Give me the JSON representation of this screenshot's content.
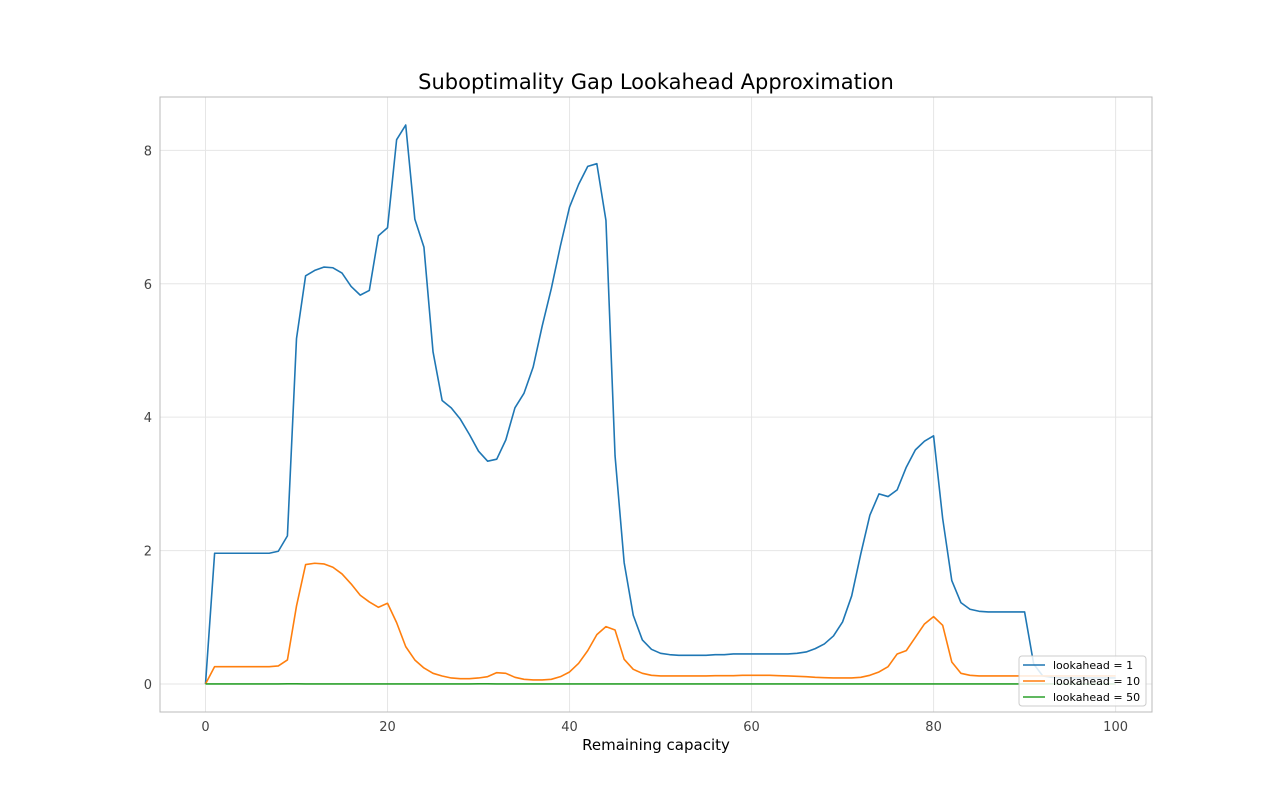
{
  "chart_data": {
    "type": "line",
    "title": "Suboptimality Gap Lookahead Approximation",
    "xlabel": "Remaining capacity",
    "ylabel": "",
    "xlim": [
      -5,
      104
    ],
    "ylim": [
      -0.42,
      8.8
    ],
    "xticks": [
      0,
      20,
      40,
      60,
      80,
      100
    ],
    "yticks": [
      0,
      2,
      4,
      6,
      8
    ],
    "grid": true,
    "legend_position": "lower-right",
    "x": [
      0,
      1,
      2,
      3,
      4,
      5,
      6,
      7,
      8,
      9,
      10,
      11,
      12,
      13,
      14,
      15,
      16,
      17,
      18,
      19,
      20,
      21,
      22,
      23,
      24,
      25,
      26,
      27,
      28,
      29,
      30,
      31,
      32,
      33,
      34,
      35,
      36,
      37,
      38,
      39,
      40,
      41,
      42,
      43,
      44,
      45,
      46,
      47,
      48,
      49,
      50,
      51,
      52,
      53,
      54,
      55,
      56,
      57,
      58,
      59,
      60,
      61,
      62,
      63,
      64,
      65,
      66,
      67,
      68,
      69,
      70,
      71,
      72,
      73,
      74,
      75,
      76,
      77,
      78,
      79,
      80,
      81,
      82,
      83,
      84,
      85,
      86,
      87,
      88,
      89,
      90,
      91,
      92,
      93,
      94,
      95,
      96,
      97,
      98,
      99,
      100
    ],
    "series": [
      {
        "name": "lookahead = 1",
        "color": "#1f77b4",
        "values": [
          0,
          1.96,
          1.96,
          1.96,
          1.96,
          1.96,
          1.96,
          1.96,
          1.99,
          2.22,
          5.18,
          6.12,
          6.2,
          6.25,
          6.24,
          6.16,
          5.96,
          5.83,
          5.9,
          6.72,
          6.84,
          8.16,
          8.38,
          6.97,
          6.55,
          4.98,
          4.25,
          4.14,
          3.97,
          3.74,
          3.49,
          3.34,
          3.37,
          3.66,
          4.14,
          4.36,
          4.75,
          5.37,
          5.93,
          6.57,
          7.15,
          7.49,
          7.76,
          7.8,
          6.95,
          3.42,
          1.82,
          1.03,
          0.66,
          0.52,
          0.46,
          0.44,
          0.43,
          0.43,
          0.43,
          0.43,
          0.44,
          0.44,
          0.45,
          0.45,
          0.45,
          0.45,
          0.45,
          0.45,
          0.45,
          0.46,
          0.48,
          0.53,
          0.6,
          0.72,
          0.93,
          1.32,
          1.95,
          2.53,
          2.85,
          2.81,
          2.91,
          3.25,
          3.51,
          3.64,
          3.72,
          2.48,
          1.55,
          1.22,
          1.12,
          1.09,
          1.08,
          1.08,
          1.08,
          1.08,
          1.08,
          0.3,
          0.12,
          0.1,
          0.09,
          0.09,
          0.09,
          0.09,
          0.09,
          0.09,
          0.09
        ]
      },
      {
        "name": "lookahead = 10",
        "color": "#ff7f0e",
        "values": [
          0,
          0.26,
          0.26,
          0.26,
          0.26,
          0.26,
          0.26,
          0.26,
          0.27,
          0.36,
          1.17,
          1.79,
          1.81,
          1.8,
          1.75,
          1.65,
          1.5,
          1.33,
          1.23,
          1.15,
          1.21,
          0.92,
          0.56,
          0.36,
          0.24,
          0.16,
          0.12,
          0.09,
          0.08,
          0.08,
          0.09,
          0.11,
          0.17,
          0.16,
          0.1,
          0.07,
          0.06,
          0.06,
          0.07,
          0.11,
          0.18,
          0.31,
          0.5,
          0.74,
          0.86,
          0.81,
          0.37,
          0.22,
          0.16,
          0.13,
          0.12,
          0.12,
          0.12,
          0.12,
          0.12,
          0.12,
          0.125,
          0.125,
          0.125,
          0.13,
          0.13,
          0.13,
          0.13,
          0.125,
          0.12,
          0.115,
          0.11,
          0.1,
          0.095,
          0.09,
          0.09,
          0.09,
          0.1,
          0.13,
          0.18,
          0.26,
          0.45,
          0.5,
          0.7,
          0.9,
          1.01,
          0.88,
          0.33,
          0.16,
          0.13,
          0.12,
          0.12,
          0.12,
          0.12,
          0.12,
          0.12,
          0.12,
          0.12,
          0.12,
          0.12,
          0.12,
          0.12,
          0.12,
          0.12,
          0.12,
          0.12
        ]
      },
      {
        "name": "lookahead = 50",
        "color": "#2ca02c",
        "values": [
          0,
          0,
          0,
          0,
          0,
          0,
          0,
          0,
          0,
          0.003,
          0.003,
          0,
          0,
          0,
          0,
          0,
          0,
          0,
          0,
          0,
          0,
          0,
          0,
          0,
          0,
          0,
          0,
          0,
          0,
          0,
          0.003,
          0.003,
          0,
          0,
          0,
          0,
          0,
          0,
          0,
          0,
          0,
          0,
          0,
          0,
          0,
          0,
          0,
          0,
          0,
          0,
          0,
          0,
          0,
          0,
          0,
          0,
          0,
          0,
          0,
          0,
          0,
          0,
          0,
          0,
          0,
          0,
          0,
          0,
          0,
          0,
          0,
          0,
          0,
          0,
          0,
          0,
          0,
          0,
          0,
          0,
          0,
          0,
          0,
          0,
          0,
          0,
          0,
          0,
          0,
          0,
          0,
          0,
          0,
          0,
          0,
          0,
          0,
          0,
          0,
          0,
          0
        ]
      }
    ]
  }
}
